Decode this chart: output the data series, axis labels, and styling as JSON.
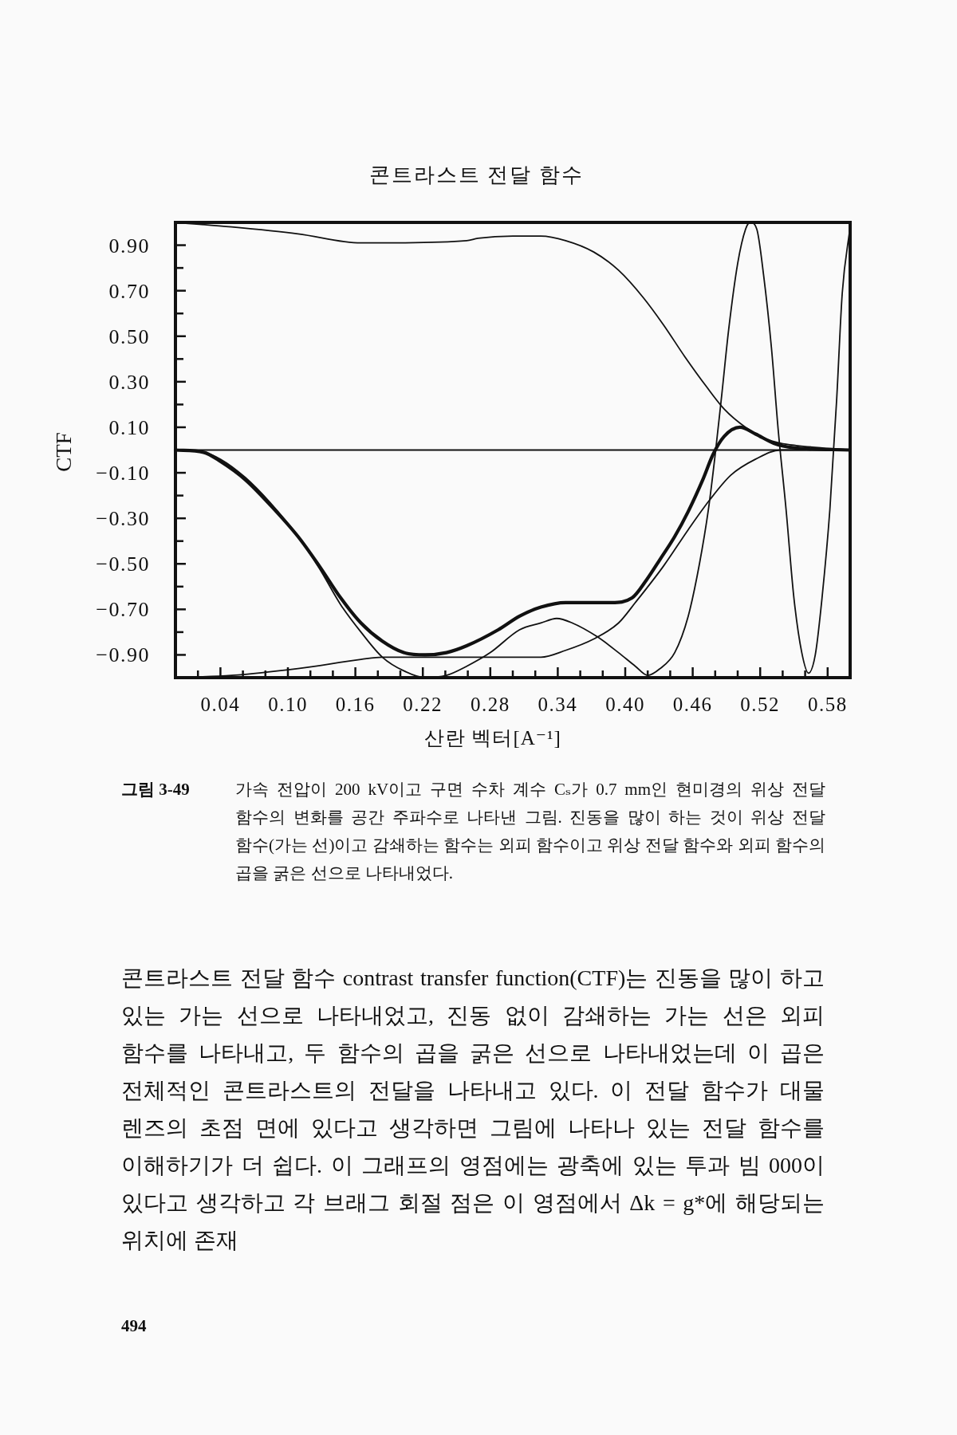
{
  "chart_data": {
    "type": "line",
    "title": "콘트라스트 전달 함수",
    "xlabel": "산란 벡터[A⁻¹]",
    "ylabel": "CTF",
    "xlim": [
      0,
      0.6
    ],
    "ylim": [
      -1,
      1
    ],
    "xticks": [
      {
        "value": 0.02,
        "label": null
      },
      0.04,
      {
        "value": 0.06,
        "label": null
      },
      {
        "value": 0.08,
        "label": null
      },
      {
        "value": 0.1,
        "label": "0.10"
      },
      {
        "value": 0.12,
        "label": null
      },
      {
        "value": 0.14,
        "label": null
      },
      0.16,
      {
        "value": 0.18,
        "label": null
      },
      {
        "value": 0.2,
        "label": null
      },
      0.22,
      {
        "value": 0.24,
        "label": null
      },
      {
        "value": 0.26,
        "label": null
      },
      0.28,
      {
        "value": 0.3,
        "label": null
      },
      {
        "value": 0.32,
        "label": null
      },
      0.34,
      {
        "value": 0.36,
        "label": null
      },
      {
        "value": 0.38,
        "label": null
      },
      {
        "value": 0.4,
        "label": "0.40"
      },
      {
        "value": 0.42,
        "label": null
      },
      {
        "value": 0.44,
        "label": null
      },
      0.46,
      {
        "value": 0.48,
        "label": null
      },
      {
        "value": 0.5,
        "label": null
      },
      0.52,
      {
        "value": 0.54,
        "label": null
      },
      {
        "value": 0.56,
        "label": null
      },
      0.58
    ],
    "yticks": [
      {
        "value": 0.9,
        "label": "0.90"
      },
      {
        "value": 0.8,
        "label": null
      },
      {
        "value": 0.7,
        "label": "0.70"
      },
      {
        "value": 0.6,
        "label": null
      },
      {
        "value": 0.5,
        "label": "0.50"
      },
      {
        "value": 0.4,
        "label": null
      },
      {
        "value": 0.3,
        "label": "0.30"
      },
      {
        "value": 0.2,
        "label": null
      },
      {
        "value": 0.1,
        "label": "0.10"
      },
      {
        "value": 0,
        "label": null
      },
      {
        "value": -0.1,
        "label": "−0.10"
      },
      {
        "value": -0.2,
        "label": null
      },
      {
        "value": -0.3,
        "label": "−0.30"
      },
      {
        "value": -0.4,
        "label": null
      },
      {
        "value": -0.5,
        "label": "−0.50"
      },
      {
        "value": -0.6,
        "label": null
      },
      {
        "value": -0.7,
        "label": "−0.70"
      },
      {
        "value": -0.8,
        "label": null
      },
      {
        "value": -0.9,
        "label": "−0.90"
      }
    ],
    "ref_lines": [
      {
        "axis": "y",
        "value": 0,
        "color": "#111111"
      }
    ],
    "series": [
      {
        "color": "#111111",
        "x": [
          0,
          0.05,
          0.109,
          0.165,
          0.184,
          0.259,
          0.269,
          0.3,
          0.325,
          0.347,
          0.372,
          0.394,
          0.416,
          0.434,
          0.453,
          0.472,
          0.488,
          0.507,
          0.525,
          0.538,
          0.552,
          0.6
        ],
        "values": [
          1.0,
          0.98,
          0.95,
          0.91,
          0.91,
          0.92,
          0.93,
          0.94,
          0.94,
          0.92,
          0.87,
          0.79,
          0.67,
          0.55,
          0.41,
          0.28,
          0.18,
          0.1,
          0.05,
          0.03,
          0.02,
          0
        ]
      },
      {
        "color": "#111111",
        "x": [
          0,
          0.05,
          0.109,
          0.165,
          0.184,
          0.26,
          0.325,
          0.347,
          0.372,
          0.394,
          0.409,
          0.434,
          0.456,
          0.475,
          0.494,
          0.516,
          0.538,
          0.6
        ],
        "values": [
          -1.0,
          -0.99,
          -0.96,
          -0.92,
          -0.91,
          -0.91,
          -0.91,
          -0.88,
          -0.83,
          -0.76,
          -0.67,
          -0.51,
          -0.35,
          -0.22,
          -0.11,
          -0.04,
          0,
          0
        ]
      },
      {
        "color": "#111111",
        "x": [
          0,
          0.025,
          0.04,
          0.062,
          0.084,
          0.109,
          0.128,
          0.147,
          0.165,
          0.184,
          0.203,
          0.222,
          0.241,
          0.259,
          0.28,
          0.306,
          0.325,
          0.339,
          0.353,
          0.375,
          0.394,
          0.409,
          0.42,
          0.431,
          0.444,
          0.456,
          0.466,
          0.474,
          0.48,
          0.486,
          0.492,
          0.5,
          0.507,
          0.511,
          0.517,
          0.523,
          0.53,
          0.536,
          0.543,
          0.55,
          0.557,
          0.563,
          0.569,
          0.575,
          0.582,
          0.588,
          0.593,
          0.6
        ],
        "values": [
          0,
          -0.01,
          -0.04,
          -0.12,
          -0.23,
          -0.38,
          -0.52,
          -0.68,
          -0.8,
          -0.91,
          -0.97,
          -1.0,
          -0.99,
          -0.95,
          -0.89,
          -0.79,
          -0.76,
          -0.74,
          -0.76,
          -0.82,
          -0.89,
          -0.95,
          -0.99,
          -0.96,
          -0.89,
          -0.73,
          -0.5,
          -0.26,
          -0.02,
          0.25,
          0.53,
          0.82,
          0.97,
          1.0,
          0.97,
          0.77,
          0.45,
          0.09,
          -0.26,
          -0.65,
          -0.89,
          -0.98,
          -0.9,
          -0.65,
          -0.26,
          0.22,
          0.69,
          0.98
        ]
      },
      {
        "color": "#111111",
        "x": [
          0,
          0.025,
          0.04,
          0.062,
          0.084,
          0.109,
          0.128,
          0.147,
          0.165,
          0.184,
          0.203,
          0.222,
          0.241,
          0.259,
          0.287,
          0.306,
          0.325,
          0.347,
          0.369,
          0.388,
          0.406,
          0.419,
          0.431,
          0.444,
          0.456,
          0.469,
          0.478,
          0.488,
          0.502,
          0.516,
          0.532,
          0.55,
          0.6
        ],
        "values": [
          0,
          -0.01,
          -0.05,
          -0.13,
          -0.24,
          -0.38,
          -0.51,
          -0.65,
          -0.76,
          -0.84,
          -0.89,
          -0.9,
          -0.89,
          -0.86,
          -0.79,
          -0.73,
          -0.69,
          -0.67,
          -0.67,
          -0.67,
          -0.65,
          -0.57,
          -0.48,
          -0.38,
          -0.27,
          -0.13,
          -0.02,
          0.06,
          0.1,
          0.07,
          0.03,
          0.01,
          0
        ]
      }
    ],
    "annotations": [
      "그림 3-49",
      "가속 전압이 200 kV이고 구면 수차 계수 Cₛ가 0.7 mm인 현미경의 위상 전달 함수의 변화를 공간 주파수로 나타낸 그림. 진동을 많이 하는 것이 위상 전달 함수(가는 선)이고 감쇄하는 함수는 외피 함수이고 위상 전달 함수와 외피 함수의 곱을 굵은 선으로 나타내었다.",
      "콘트라스트 전달 함수 contrast transfer function(CTF)는 진동을 많이 하고 있는 가는 선으로 나타내었고, 진동 없이 감쇄하는 가는 선은 외피 함수를 나타내고, 두 함수의 곱을 굵은 선으로 나타내었는데 이 곱은 전체적인 콘트라스트의 전달을 나타내고 있다. 이 전달 함수가 대물 렌즈의 초점 면에 있다고 생각하면 그림에 나타나 있는 전달 함수를 이해하기가 더 쉽다. 이 그래프의 영점에는 광축에 있는 투과 빔 000이 있다고 생각하고 각 브래그 회절 점은 이 영점에서 Δk = g*에 해당되는 위치에 존재",
      "494"
    ]
  }
}
